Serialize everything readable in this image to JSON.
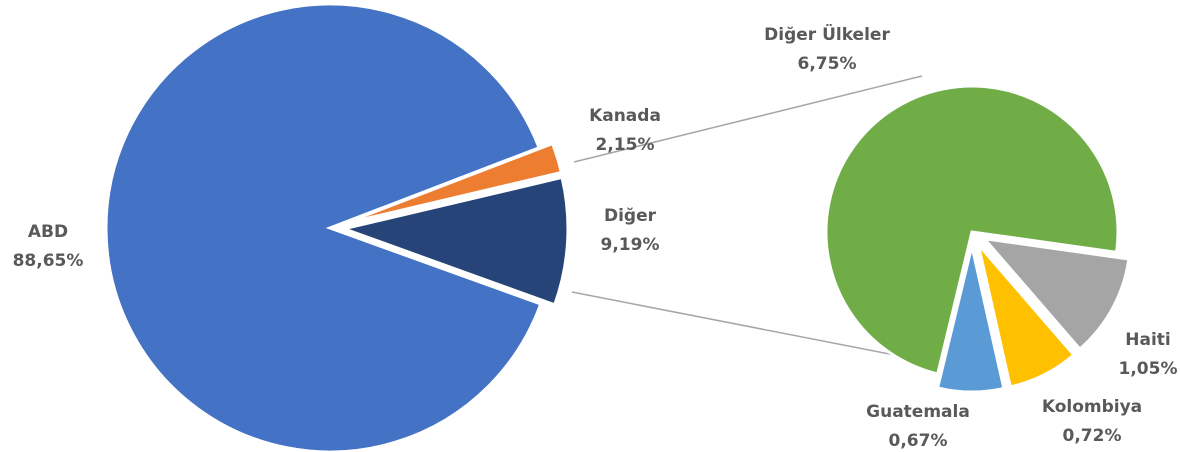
{
  "chart_data": [
    {
      "type": "pie",
      "categories": [
        "Kanada",
        "Diğer",
        "ABD"
      ],
      "values": [
        2.15,
        9.19,
        88.65
      ],
      "value_labels": [
        "2,15%",
        "9,19%",
        "88,65%"
      ],
      "colors": [
        "#ed7d31",
        "#264478",
        "#4472c4"
      ]
    },
    {
      "type": "pie",
      "categories": [
        "Haiti",
        "Kolombiya",
        "Guatemala",
        "Diğer Ülkeler"
      ],
      "values": [
        1.05,
        0.72,
        0.67,
        6.75
      ],
      "value_labels": [
        "1,05%",
        "0,72%",
        "0,67%",
        "6,75%"
      ],
      "colors": [
        "#a5a5a5",
        "#ffc000",
        "#5b9bd5",
        "#70ad47"
      ]
    }
  ]
}
